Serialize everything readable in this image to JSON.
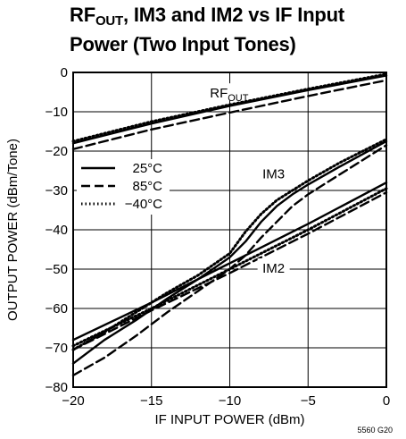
{
  "title": {
    "prefix": "RF",
    "sub": "OUT",
    "line1_rest": ", IM3 and IM2 vs IF Input",
    "line2": "Power (Two Input Tones)"
  },
  "figure_code": "5560 G20",
  "chart_data": {
    "type": "line",
    "xlabel": "IF INPUT POWER (dBm)",
    "ylabel": "OUTPUT POWER (dBm/Tone)",
    "xlim": [
      -20,
      0
    ],
    "ylim": [
      -80,
      0
    ],
    "xticks": [
      -20,
      -15,
      -10,
      -5,
      0
    ],
    "yticks": [
      0,
      -10,
      -20,
      -30,
      -40,
      -50,
      -60,
      -70,
      -80
    ],
    "xtick_labels": [
      "−20",
      "−15",
      "−10",
      "−5",
      "0"
    ],
    "ytick_labels": [
      "0",
      "−10",
      "−20",
      "−30",
      "−40",
      "−50",
      "−60",
      "−70",
      "−80"
    ],
    "grid": true,
    "legend": {
      "position": "left",
      "entries": [
        {
          "label": "25°C",
          "style": "solid"
        },
        {
          "label": "85°C",
          "style": "dashed"
        },
        {
          "label": "−40°C",
          "style": "dotted"
        }
      ]
    },
    "annotations": [
      {
        "text": "RF",
        "sub": "OUT",
        "x": -10.3,
        "y": -5.5
      },
      {
        "text": "IM3",
        "x": -7.2,
        "y": -26
      },
      {
        "text": "IM2",
        "x": -7.2,
        "y": -50
      }
    ],
    "series": [
      {
        "group": "RFOUT",
        "temp": "25°C",
        "style": "solid",
        "x": [
          -20,
          -15,
          -10,
          -5,
          0
        ],
        "y": [
          -18,
          -13,
          -8.5,
          -4.5,
          -0.8
        ]
      },
      {
        "group": "RFOUT",
        "temp": "85°C",
        "style": "dashed",
        "x": [
          -20,
          -15,
          -10,
          -5,
          0
        ],
        "y": [
          -19.5,
          -14.5,
          -10.2,
          -6,
          -2
        ]
      },
      {
        "group": "RFOUT",
        "temp": "−40°C",
        "style": "dotted",
        "x": [
          -20,
          -15,
          -10,
          -5,
          0
        ],
        "y": [
          -17.5,
          -12.5,
          -8.2,
          -4.2,
          -0.4
        ]
      },
      {
        "group": "IM3",
        "temp": "25°C",
        "style": "solid",
        "x": [
          -20,
          -18,
          -16,
          -14,
          -12,
          -10,
          -9,
          -8,
          -7,
          -6,
          -5,
          -3,
          0
        ],
        "y": [
          -74,
          -68,
          -63,
          -57.5,
          -52.5,
          -47,
          -43,
          -38,
          -34,
          -31,
          -28.5,
          -24,
          -17.5
        ]
      },
      {
        "group": "IM3",
        "temp": "85°C",
        "style": "dashed",
        "x": [
          -20,
          -18,
          -16,
          -14,
          -12,
          -10,
          -9,
          -8,
          -7,
          -6,
          -5,
          -3,
          0
        ],
        "y": [
          -77,
          -72.5,
          -67,
          -61,
          -55.5,
          -50,
          -46.5,
          -42,
          -38,
          -34,
          -31,
          -26,
          -18.5
        ]
      },
      {
        "group": "IM3",
        "temp": "−40°C",
        "style": "dotted",
        "x": [
          -20,
          -18,
          -16,
          -14,
          -12,
          -10,
          -9,
          -8,
          -7,
          -6,
          -5,
          -3,
          0
        ],
        "y": [
          -70.5,
          -66,
          -61,
          -56,
          -51.5,
          -46,
          -40.5,
          -36,
          -32.5,
          -30,
          -27.5,
          -23,
          -17
        ]
      },
      {
        "group": "IM2",
        "temp": "25°C",
        "style": "solid",
        "x": [
          -20,
          -15,
          -10,
          -5,
          0
        ],
        "y": [
          -68,
          -58.5,
          -48.5,
          -38.5,
          -28
        ]
      },
      {
        "group": "IM2",
        "temp": "85°C",
        "style": "dashed",
        "x": [
          -20,
          -15,
          -10,
          -5,
          0
        ],
        "y": [
          -70.5,
          -60.5,
          -51,
          -41,
          -30.5
        ]
      },
      {
        "group": "IM2",
        "temp": "−40°C",
        "style": "dotted",
        "x": [
          -20,
          -15,
          -10,
          -5,
          0
        ],
        "y": [
          -69.5,
          -60,
          -50,
          -40,
          -29.5
        ]
      }
    ]
  }
}
